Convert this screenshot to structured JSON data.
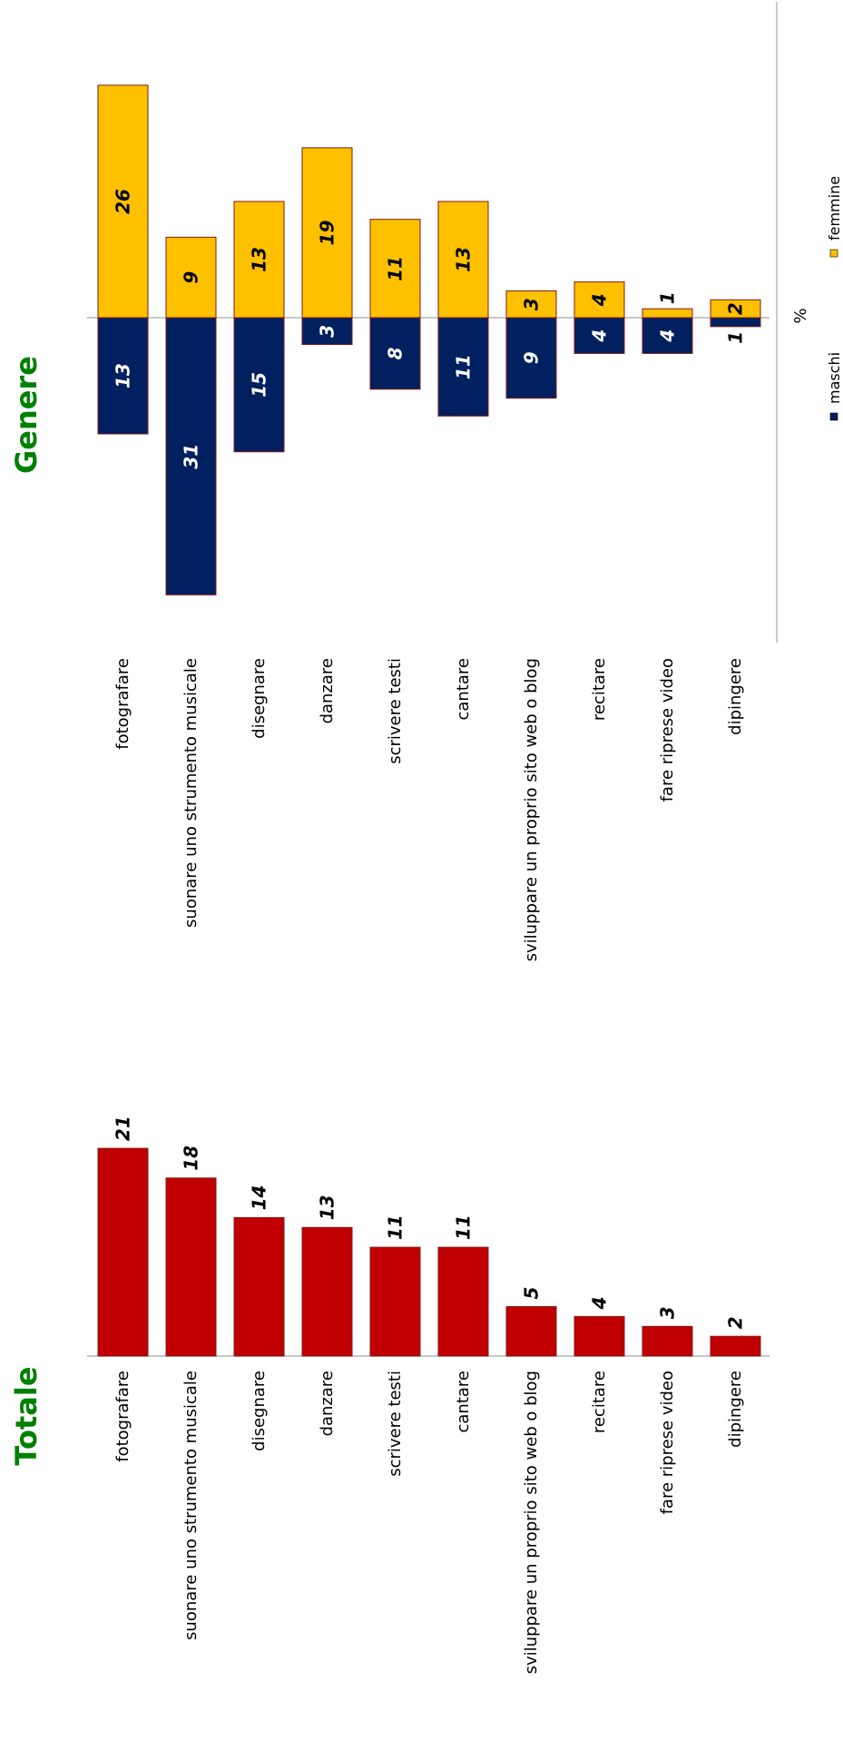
{
  "colors": {
    "totale_bar": "#C00000",
    "maschi_bar": "#002060",
    "femmine_bar": "#FFC000",
    "title": "#008000",
    "bar_border": "#7F1A1A",
    "axis": "#A6A6A6"
  },
  "chart_data": [
    {
      "type": "bar",
      "title": "Totale",
      "categories": [
        "fotografare",
        "suonare uno strumento musicale",
        "disegnare",
        "danzare",
        "scrivere testi",
        "cantare",
        "sviluppare un proprio sito web o blog",
        "recitare",
        "fare riprese video",
        "dipingere"
      ],
      "values": [
        21,
        18,
        14,
        13,
        11,
        11,
        5,
        4,
        3,
        2
      ],
      "labels": [
        "21",
        "18",
        "14",
        "13",
        "11",
        "11",
        "5",
        "4",
        "3",
        "2"
      ],
      "grid": false,
      "orientation": "rotated-90"
    },
    {
      "type": "bar",
      "title": "Genere",
      "ylabel": "%",
      "categories": [
        "fotografare",
        "suonare uno strumento musicale",
        "disegnare",
        "danzare",
        "scrivere testi",
        "cantare",
        "sviluppare un proprio sito web o blog",
        "recitare",
        "fare riprese video",
        "dipingere"
      ],
      "series": [
        {
          "name": "maschi",
          "values": [
            13,
            31,
            15,
            3,
            8,
            11,
            9,
            4,
            4,
            1
          ],
          "labels": [
            "13",
            "31",
            "15",
            "3",
            "8",
            "11",
            "9",
            "4",
            "4",
            "1"
          ]
        },
        {
          "name": "femmine",
          "values": [
            26,
            9,
            13,
            19,
            11,
            13,
            3,
            4,
            1,
            2
          ],
          "labels": [
            "26",
            "9",
            "13",
            "19",
            "11",
            "13",
            "3",
            "4",
            "1",
            "2"
          ]
        }
      ],
      "legend": "bottom",
      "grid": false,
      "orientation": "rotated-90"
    }
  ]
}
